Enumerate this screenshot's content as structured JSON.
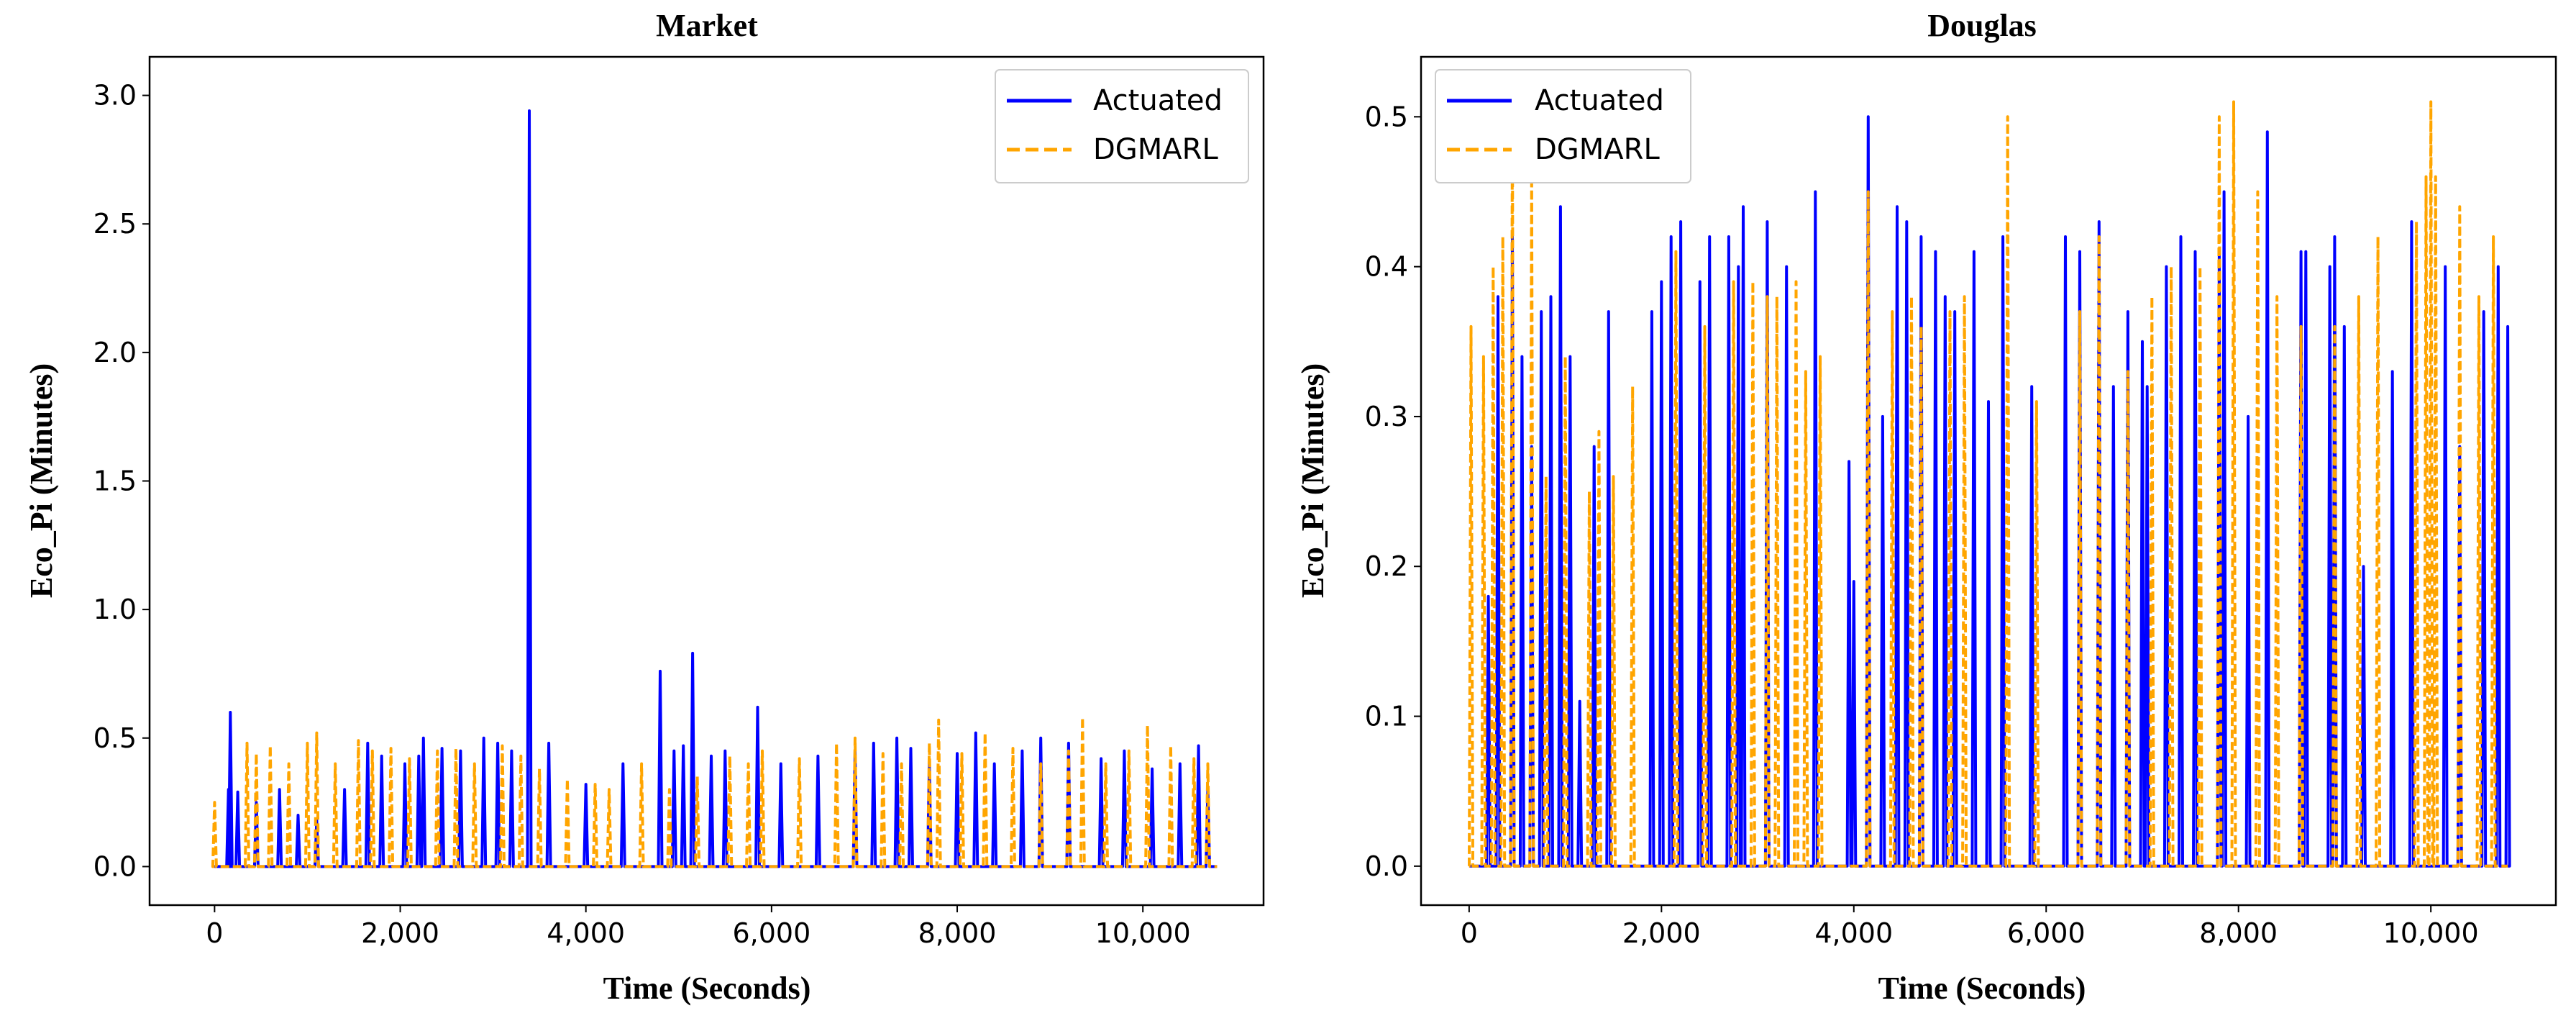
{
  "colors": {
    "actuated": "#0000ff",
    "dgmarl": "#ffa500",
    "axes": "#000000",
    "legend_border": "#cccccc"
  },
  "chart_data": [
    {
      "type": "line",
      "title": "Market",
      "xlabel": "Time (Seconds)",
      "ylabel": "Eco_Pi (Minutes)",
      "xlim": [
        -700,
        11300
      ],
      "ylim": [
        -0.15,
        3.15
      ],
      "xticks": [
        0,
        2000,
        4000,
        6000,
        8000,
        10000
      ],
      "xtick_labels": [
        "0",
        "2,000",
        "4,000",
        "6,000",
        "8,000",
        "10,000"
      ],
      "yticks": [
        0.0,
        0.5,
        1.0,
        1.5,
        2.0,
        2.5,
        3.0
      ],
      "ytick_labels": [
        "0.0",
        "0.5",
        "1.0",
        "1.5",
        "2.0",
        "2.5",
        "3.0"
      ],
      "legend_position": "upper right",
      "series": [
        {
          "name": "Actuated",
          "style": "solid",
          "spikes": [
            [
              150,
              0.3
            ],
            [
              170,
              0.6
            ],
            [
              250,
              0.29
            ],
            [
              450,
              0.25
            ],
            [
              700,
              0.3
            ],
            [
              900,
              0.2
            ],
            [
              1100,
              0.18
            ],
            [
              1400,
              0.3
            ],
            [
              1650,
              0.48
            ],
            [
              1800,
              0.43
            ],
            [
              2050,
              0.4
            ],
            [
              2200,
              0.43
            ],
            [
              2250,
              0.5
            ],
            [
              2450,
              0.46
            ],
            [
              2650,
              0.45
            ],
            [
              2900,
              0.5
            ],
            [
              3050,
              0.48
            ],
            [
              3200,
              0.45
            ],
            [
              3390,
              2.94
            ],
            [
              3600,
              0.48
            ],
            [
              4000,
              0.32
            ],
            [
              4400,
              0.4
            ],
            [
              4800,
              0.76
            ],
            [
              4950,
              0.45
            ],
            [
              5050,
              0.47
            ],
            [
              5150,
              0.83
            ],
            [
              5350,
              0.43
            ],
            [
              5500,
              0.45
            ],
            [
              5850,
              0.62
            ],
            [
              6100,
              0.4
            ],
            [
              6500,
              0.43
            ],
            [
              6900,
              0.45
            ],
            [
              7100,
              0.48
            ],
            [
              7350,
              0.5
            ],
            [
              7500,
              0.46
            ],
            [
              7700,
              0.4
            ],
            [
              8000,
              0.44
            ],
            [
              8200,
              0.52
            ],
            [
              8400,
              0.4
            ],
            [
              8700,
              0.45
            ],
            [
              8900,
              0.5
            ],
            [
              9200,
              0.48
            ],
            [
              9550,
              0.42
            ],
            [
              9800,
              0.45
            ],
            [
              10100,
              0.38
            ],
            [
              10400,
              0.4
            ],
            [
              10600,
              0.47
            ],
            [
              10700,
              0.3
            ]
          ]
        },
        {
          "name": "DGMARL",
          "style": "dashed",
          "spikes": [
            [
              0,
              0.25
            ],
            [
              350,
              0.48
            ],
            [
              450,
              0.44
            ],
            [
              600,
              0.47
            ],
            [
              800,
              0.4
            ],
            [
              1000,
              0.48
            ],
            [
              1100,
              0.52
            ],
            [
              1300,
              0.4
            ],
            [
              1550,
              0.49
            ],
            [
              1700,
              0.45
            ],
            [
              1900,
              0.46
            ],
            [
              2100,
              0.42
            ],
            [
              2400,
              0.45
            ],
            [
              2600,
              0.46
            ],
            [
              2800,
              0.4
            ],
            [
              3100,
              0.47
            ],
            [
              3300,
              0.43
            ],
            [
              3500,
              0.38
            ],
            [
              3800,
              0.34
            ],
            [
              4100,
              0.32
            ],
            [
              4250,
              0.3
            ],
            [
              4600,
              0.4
            ],
            [
              4900,
              0.3
            ],
            [
              5200,
              0.35
            ],
            [
              5550,
              0.43
            ],
            [
              5750,
              0.4
            ],
            [
              5900,
              0.45
            ],
            [
              6300,
              0.42
            ],
            [
              6700,
              0.48
            ],
            [
              6900,
              0.5
            ],
            [
              7200,
              0.44
            ],
            [
              7400,
              0.4
            ],
            [
              7700,
              0.48
            ],
            [
              7800,
              0.57
            ],
            [
              8050,
              0.44
            ],
            [
              8300,
              0.52
            ],
            [
              8600,
              0.46
            ],
            [
              8900,
              0.4
            ],
            [
              9200,
              0.45
            ],
            [
              9350,
              0.58
            ],
            [
              9600,
              0.4
            ],
            [
              9850,
              0.45
            ],
            [
              10050,
              0.55
            ],
            [
              10300,
              0.47
            ],
            [
              10550,
              0.42
            ],
            [
              10700,
              0.4
            ]
          ]
        }
      ]
    },
    {
      "type": "line",
      "title": "Douglas",
      "xlabel": "Time (Seconds)",
      "ylabel": "Eco_Pi (Minutes)",
      "xlim": [
        -500,
        11300
      ],
      "ylim": [
        -0.026,
        0.54
      ],
      "xticks": [
        0,
        2000,
        4000,
        6000,
        8000,
        10000
      ],
      "xtick_labels": [
        "0",
        "2,000",
        "4,000",
        "6,000",
        "8,000",
        "10,000"
      ],
      "yticks": [
        0.0,
        0.1,
        0.2,
        0.3,
        0.4,
        0.5
      ],
      "ytick_labels": [
        "0.0",
        "0.1",
        "0.2",
        "0.3",
        "0.4",
        "0.5"
      ],
      "legend_position": "upper left",
      "series": [
        {
          "name": "Actuated",
          "style": "solid",
          "spikes": [
            [
              200,
              0.18
            ],
            [
              300,
              0.38
            ],
            [
              450,
              0.42
            ],
            [
              550,
              0.34
            ],
            [
              650,
              0.28
            ],
            [
              750,
              0.37
            ],
            [
              850,
              0.38
            ],
            [
              950,
              0.44
            ],
            [
              1050,
              0.34
            ],
            [
              1150,
              0.11
            ],
            [
              1300,
              0.28
            ],
            [
              1450,
              0.37
            ],
            [
              1900,
              0.37
            ],
            [
              2000,
              0.39
            ],
            [
              2100,
              0.42
            ],
            [
              2200,
              0.43
            ],
            [
              2400,
              0.39
            ],
            [
              2500,
              0.42
            ],
            [
              2700,
              0.42
            ],
            [
              2800,
              0.4
            ],
            [
              2850,
              0.44
            ],
            [
              3100,
              0.43
            ],
            [
              3300,
              0.4
            ],
            [
              3600,
              0.45
            ],
            [
              3950,
              0.27
            ],
            [
              4000,
              0.19
            ],
            [
              4150,
              0.5
            ],
            [
              4300,
              0.3
            ],
            [
              4450,
              0.44
            ],
            [
              4550,
              0.43
            ],
            [
              4700,
              0.42
            ],
            [
              4850,
              0.41
            ],
            [
              4950,
              0.38
            ],
            [
              5050,
              0.37
            ],
            [
              5250,
              0.41
            ],
            [
              5400,
              0.31
            ],
            [
              5550,
              0.42
            ],
            [
              5850,
              0.32
            ],
            [
              6200,
              0.42
            ],
            [
              6350,
              0.41
            ],
            [
              6550,
              0.43
            ],
            [
              6700,
              0.32
            ],
            [
              6850,
              0.37
            ],
            [
              7000,
              0.35
            ],
            [
              7050,
              0.32
            ],
            [
              7250,
              0.4
            ],
            [
              7400,
              0.42
            ],
            [
              7550,
              0.41
            ],
            [
              7800,
              0.41
            ],
            [
              7850,
              0.45
            ],
            [
              8100,
              0.3
            ],
            [
              8300,
              0.49
            ],
            [
              8650,
              0.41
            ],
            [
              8700,
              0.41
            ],
            [
              8950,
              0.4
            ],
            [
              9000,
              0.42
            ],
            [
              9100,
              0.36
            ],
            [
              9300,
              0.2
            ],
            [
              9600,
              0.33
            ],
            [
              9800,
              0.43
            ],
            [
              10150,
              0.4
            ],
            [
              10300,
              0.28
            ],
            [
              10550,
              0.37
            ],
            [
              10700,
              0.4
            ],
            [
              10800,
              0.36
            ]
          ]
        },
        {
          "name": "DGMARL",
          "style": "dashed",
          "spikes": [
            [
              20,
              0.36
            ],
            [
              150,
              0.34
            ],
            [
              250,
              0.4
            ],
            [
              350,
              0.42
            ],
            [
              450,
              0.5
            ],
            [
              650,
              0.46
            ],
            [
              800,
              0.26
            ],
            [
              1000,
              0.34
            ],
            [
              1250,
              0.25
            ],
            [
              1350,
              0.29
            ],
            [
              1500,
              0.26
            ],
            [
              1700,
              0.32
            ],
            [
              2150,
              0.41
            ],
            [
              2450,
              0.36
            ],
            [
              2750,
              0.39
            ],
            [
              2950,
              0.39
            ],
            [
              3100,
              0.38
            ],
            [
              3200,
              0.38
            ],
            [
              3400,
              0.39
            ],
            [
              3500,
              0.33
            ],
            [
              3650,
              0.34
            ],
            [
              4150,
              0.45
            ],
            [
              4400,
              0.37
            ],
            [
              4600,
              0.38
            ],
            [
              4700,
              0.36
            ],
            [
              5000,
              0.37
            ],
            [
              5150,
              0.38
            ],
            [
              5600,
              0.5
            ],
            [
              5900,
              0.31
            ],
            [
              6350,
              0.37
            ],
            [
              6550,
              0.42
            ],
            [
              6850,
              0.33
            ],
            [
              7100,
              0.38
            ],
            [
              7300,
              0.4
            ],
            [
              7600,
              0.4
            ],
            [
              7800,
              0.5
            ],
            [
              7950,
              0.51
            ],
            [
              8200,
              0.45
            ],
            [
              8400,
              0.38
            ],
            [
              8650,
              0.36
            ],
            [
              9000,
              0.36
            ],
            [
              9250,
              0.38
            ],
            [
              9450,
              0.42
            ],
            [
              9850,
              0.43
            ],
            [
              9950,
              0.46
            ],
            [
              10000,
              0.51
            ],
            [
              10050,
              0.46
            ],
            [
              10300,
              0.44
            ],
            [
              10500,
              0.38
            ],
            [
              10650,
              0.42
            ]
          ]
        }
      ]
    }
  ]
}
